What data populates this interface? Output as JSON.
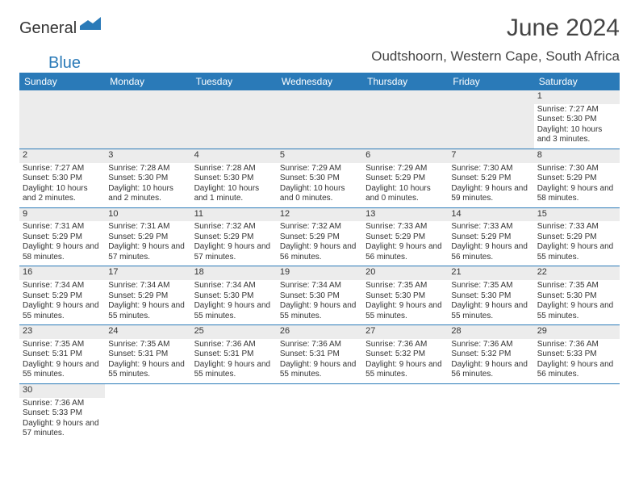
{
  "logo": {
    "part1": "General",
    "part2": "Blue"
  },
  "title": "June 2024",
  "location": "Oudtshoorn, Western Cape, South Africa",
  "colors": {
    "header_bg": "#2a7ab8",
    "header_text": "#ffffff",
    "shade": "#ececec",
    "rule": "#2a7ab8",
    "text": "#333333"
  },
  "day_headers": [
    "Sunday",
    "Monday",
    "Tuesday",
    "Wednesday",
    "Thursday",
    "Friday",
    "Saturday"
  ],
  "weeks": [
    [
      null,
      null,
      null,
      null,
      null,
      null,
      {
        "d": "1",
        "sr": "7:27 AM",
        "ss": "5:30 PM",
        "dl": "10 hours and 3 minutes."
      }
    ],
    [
      {
        "d": "2",
        "sr": "7:27 AM",
        "ss": "5:30 PM",
        "dl": "10 hours and 2 minutes."
      },
      {
        "d": "3",
        "sr": "7:28 AM",
        "ss": "5:30 PM",
        "dl": "10 hours and 2 minutes."
      },
      {
        "d": "4",
        "sr": "7:28 AM",
        "ss": "5:30 PM",
        "dl": "10 hours and 1 minute."
      },
      {
        "d": "5",
        "sr": "7:29 AM",
        "ss": "5:30 PM",
        "dl": "10 hours and 0 minutes."
      },
      {
        "d": "6",
        "sr": "7:29 AM",
        "ss": "5:29 PM",
        "dl": "10 hours and 0 minutes."
      },
      {
        "d": "7",
        "sr": "7:30 AM",
        "ss": "5:29 PM",
        "dl": "9 hours and 59 minutes."
      },
      {
        "d": "8",
        "sr": "7:30 AM",
        "ss": "5:29 PM",
        "dl": "9 hours and 58 minutes."
      }
    ],
    [
      {
        "d": "9",
        "sr": "7:31 AM",
        "ss": "5:29 PM",
        "dl": "9 hours and 58 minutes."
      },
      {
        "d": "10",
        "sr": "7:31 AM",
        "ss": "5:29 PM",
        "dl": "9 hours and 57 minutes."
      },
      {
        "d": "11",
        "sr": "7:32 AM",
        "ss": "5:29 PM",
        "dl": "9 hours and 57 minutes."
      },
      {
        "d": "12",
        "sr": "7:32 AM",
        "ss": "5:29 PM",
        "dl": "9 hours and 56 minutes."
      },
      {
        "d": "13",
        "sr": "7:33 AM",
        "ss": "5:29 PM",
        "dl": "9 hours and 56 minutes."
      },
      {
        "d": "14",
        "sr": "7:33 AM",
        "ss": "5:29 PM",
        "dl": "9 hours and 56 minutes."
      },
      {
        "d": "15",
        "sr": "7:33 AM",
        "ss": "5:29 PM",
        "dl": "9 hours and 55 minutes."
      }
    ],
    [
      {
        "d": "16",
        "sr": "7:34 AM",
        "ss": "5:29 PM",
        "dl": "9 hours and 55 minutes."
      },
      {
        "d": "17",
        "sr": "7:34 AM",
        "ss": "5:29 PM",
        "dl": "9 hours and 55 minutes."
      },
      {
        "d": "18",
        "sr": "7:34 AM",
        "ss": "5:30 PM",
        "dl": "9 hours and 55 minutes."
      },
      {
        "d": "19",
        "sr": "7:34 AM",
        "ss": "5:30 PM",
        "dl": "9 hours and 55 minutes."
      },
      {
        "d": "20",
        "sr": "7:35 AM",
        "ss": "5:30 PM",
        "dl": "9 hours and 55 minutes."
      },
      {
        "d": "21",
        "sr": "7:35 AM",
        "ss": "5:30 PM",
        "dl": "9 hours and 55 minutes."
      },
      {
        "d": "22",
        "sr": "7:35 AM",
        "ss": "5:30 PM",
        "dl": "9 hours and 55 minutes."
      }
    ],
    [
      {
        "d": "23",
        "sr": "7:35 AM",
        "ss": "5:31 PM",
        "dl": "9 hours and 55 minutes."
      },
      {
        "d": "24",
        "sr": "7:35 AM",
        "ss": "5:31 PM",
        "dl": "9 hours and 55 minutes."
      },
      {
        "d": "25",
        "sr": "7:36 AM",
        "ss": "5:31 PM",
        "dl": "9 hours and 55 minutes."
      },
      {
        "d": "26",
        "sr": "7:36 AM",
        "ss": "5:31 PM",
        "dl": "9 hours and 55 minutes."
      },
      {
        "d": "27",
        "sr": "7:36 AM",
        "ss": "5:32 PM",
        "dl": "9 hours and 55 minutes."
      },
      {
        "d": "28",
        "sr": "7:36 AM",
        "ss": "5:32 PM",
        "dl": "9 hours and 56 minutes."
      },
      {
        "d": "29",
        "sr": "7:36 AM",
        "ss": "5:33 PM",
        "dl": "9 hours and 56 minutes."
      }
    ],
    [
      {
        "d": "30",
        "sr": "7:36 AM",
        "ss": "5:33 PM",
        "dl": "9 hours and 57 minutes."
      },
      null,
      null,
      null,
      null,
      null,
      null
    ]
  ],
  "labels": {
    "sunrise": "Sunrise: ",
    "sunset": "Sunset: ",
    "daylight": "Daylight: "
  }
}
